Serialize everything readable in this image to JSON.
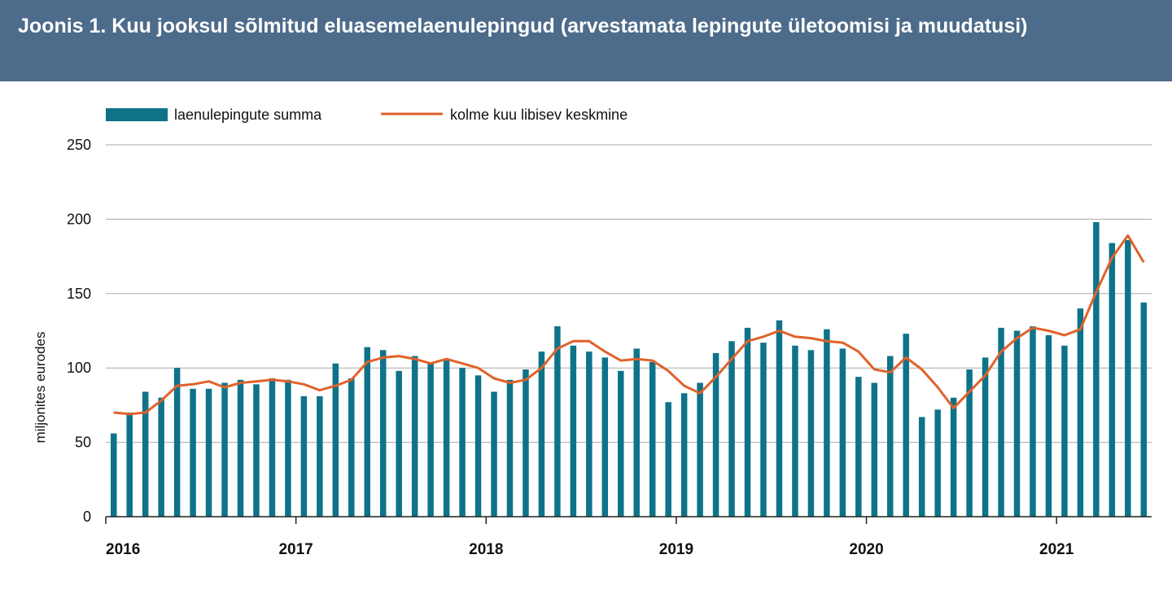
{
  "title": "Joonis 1. Kuu jooksul sõlmitud eluasemelaenulepingud (arvestamata lepingute ületoomisi ja muudatusi)",
  "chart_data": {
    "type": "bar",
    "ylabel": "miljonites eurodes",
    "ylim": [
      0,
      250
    ],
    "yticks": [
      0,
      50,
      100,
      150,
      200,
      250
    ],
    "grid": true,
    "legend_position": "top-left",
    "colors": {
      "bar": "#0e7389",
      "line": "#e0622b",
      "grid": "#aaaaaa",
      "header": "#4d6b8a"
    },
    "year_labels": [
      "2016",
      "2017",
      "2018",
      "2019",
      "2020",
      "2021"
    ],
    "start": "2016-01",
    "series": [
      {
        "name": "laenulepingute summa",
        "type": "bar",
        "values": [
          56,
          70,
          84,
          80,
          100,
          86,
          86,
          90,
          92,
          89,
          93,
          92,
          81,
          81,
          103,
          93,
          114,
          112,
          98,
          108,
          103,
          105,
          100,
          95,
          84,
          92,
          99,
          111,
          128,
          115,
          111,
          107,
          98,
          113,
          104,
          77,
          83,
          90,
          110,
          118,
          127,
          117,
          132,
          115,
          112,
          126,
          113,
          94,
          90,
          108,
          123,
          67,
          72,
          80,
          99,
          107,
          127,
          125,
          128,
          122,
          115,
          140,
          198,
          184,
          186,
          144
        ]
      },
      {
        "name": "kolme kuu libisev keskmine",
        "type": "line",
        "values": [
          70,
          69,
          70,
          78,
          88,
          89,
          91,
          87,
          90,
          91,
          92,
          91,
          89,
          85,
          88,
          92,
          104,
          107,
          108,
          106,
          103,
          106,
          103,
          100,
          93,
          90,
          92,
          100,
          113,
          118,
          118,
          111,
          105,
          106,
          105,
          98,
          88,
          83,
          94,
          106,
          118,
          121,
          125,
          121,
          120,
          118,
          117,
          111,
          99,
          97,
          107,
          99,
          87,
          73,
          84,
          95,
          111,
          120,
          127,
          125,
          122,
          126,
          151,
          174,
          189,
          171
        ]
      }
    ]
  }
}
